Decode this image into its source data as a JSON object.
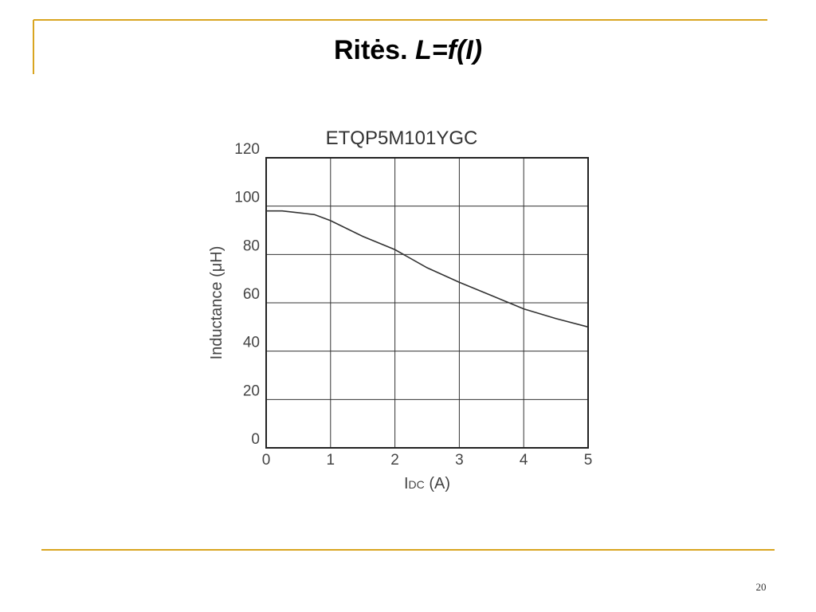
{
  "slide": {
    "title": [
      "Ritės.",
      "L=f(I)"
    ],
    "page_number": "20"
  },
  "chart_data": {
    "type": "line",
    "title": "ETQP5M101YGC",
    "x_label": [
      "I",
      "DC",
      " (A)"
    ],
    "y_label": "Inductance (μH)",
    "x": [
      0,
      0.25,
      0.75,
      1,
      1.5,
      2,
      2.5,
      3,
      3.5,
      4,
      4.5,
      5
    ],
    "series": [
      {
        "name": "ETQP5M101YGC",
        "color": "#333333",
        "values": [
          98,
          98,
          96.5,
          94,
          87.5,
          82,
          74.5,
          68.5,
          63,
          57.5,
          53.5,
          50
        ]
      }
    ],
    "xlim": [
      0,
      5
    ],
    "xticks": [
      0,
      1,
      2,
      3,
      4,
      5
    ],
    "ylim": [
      0,
      120
    ],
    "yticks": [
      0,
      20,
      40,
      60,
      80,
      100,
      120
    ],
    "grid": true
  }
}
